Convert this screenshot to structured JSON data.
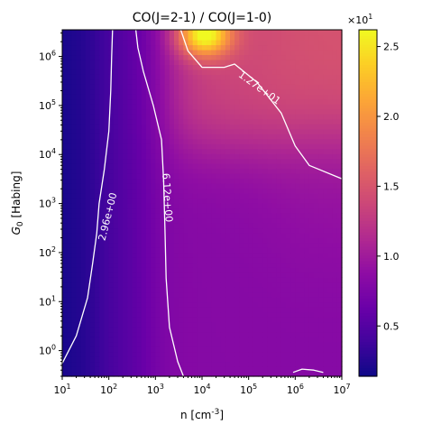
{
  "chart_data": {
    "type": "heatmap",
    "title": "CO(J=2-1) / CO(J=1-0)",
    "xlabel": "n [cm$^{-3}$]",
    "ylabel": "$G_0$ [Habing]",
    "x_scale": "log",
    "y_scale": "log",
    "xlim": [
      10,
      10000000
    ],
    "ylim": [
      0.3,
      3500000
    ],
    "x_ticks": [
      {
        "value": 10,
        "base": "10",
        "exp": "1"
      },
      {
        "value": 100,
        "base": "10",
        "exp": "2"
      },
      {
        "value": 1000,
        "base": "10",
        "exp": "3"
      },
      {
        "value": 10000,
        "base": "10",
        "exp": "4"
      },
      {
        "value": 100000,
        "base": "10",
        "exp": "5"
      },
      {
        "value": 1000000,
        "base": "10",
        "exp": "6"
      },
      {
        "value": 10000000,
        "base": "10",
        "exp": "7"
      }
    ],
    "y_ticks": [
      {
        "value": 1,
        "base": "10",
        "exp": "0"
      },
      {
        "value": 10,
        "base": "10",
        "exp": "1"
      },
      {
        "value": 100,
        "base": "10",
        "exp": "2"
      },
      {
        "value": 1000,
        "base": "10",
        "exp": "3"
      },
      {
        "value": 10000,
        "base": "10",
        "exp": "4"
      },
      {
        "value": 100000,
        "base": "10",
        "exp": "5"
      },
      {
        "value": 1000000,
        "base": "10",
        "exp": "6"
      }
    ],
    "colormap": "plasma",
    "colorbar": {
      "vmin": 1.4,
      "vmax": 26.2,
      "ticks": [
        {
          "value": 5,
          "label": "0.5"
        },
        {
          "value": 10,
          "label": "1.0"
        },
        {
          "value": 15,
          "label": "1.5"
        },
        {
          "value": 20,
          "label": "2.0"
        },
        {
          "value": 25,
          "label": "2.5"
        }
      ],
      "offset_base": "×10",
      "offset_exp": "1"
    },
    "contours": [
      {
        "level": 2.96,
        "label": "2.96e+00",
        "points": [
          [
            10,
            0.55
          ],
          [
            20,
            2
          ],
          [
            35,
            12
          ],
          [
            45,
            60
          ],
          [
            55,
            250
          ],
          [
            62,
            1000
          ],
          [
            80,
            5000
          ],
          [
            100,
            30000
          ],
          [
            110,
            200000
          ],
          [
            115,
            1000000
          ],
          [
            120,
            3500000
          ]
        ]
      },
      {
        "level": 6.12,
        "label": "6.12e+00",
        "points": [
          [
            4000,
            0.3
          ],
          [
            3000,
            0.6
          ],
          [
            2000,
            3
          ],
          [
            1700,
            30
          ],
          [
            1600,
            300
          ],
          [
            1500,
            3000
          ],
          [
            1350,
            20000
          ],
          [
            900,
            100000
          ],
          [
            550,
            500000
          ],
          [
            420,
            1500000
          ],
          [
            380,
            3500000
          ]
        ]
      },
      {
        "level": 12.7,
        "label": "1.27e+01",
        "points": [
          [
            3500,
            3500000
          ],
          [
            5000,
            1300000
          ],
          [
            10000,
            600000
          ],
          [
            30000,
            600000
          ],
          [
            50000,
            700000
          ],
          [
            150000,
            300000
          ],
          [
            500000,
            70000
          ],
          [
            1000000,
            15000
          ],
          [
            2000000,
            6000
          ],
          [
            10000000,
            3200
          ]
        ]
      },
      {
        "level": 12.7,
        "label": "",
        "points": [
          [
            900000,
            0.36
          ],
          [
            1400000,
            0.42
          ],
          [
            2500000,
            0.4
          ],
          [
            4000000,
            0.36
          ]
        ]
      }
    ]
  }
}
